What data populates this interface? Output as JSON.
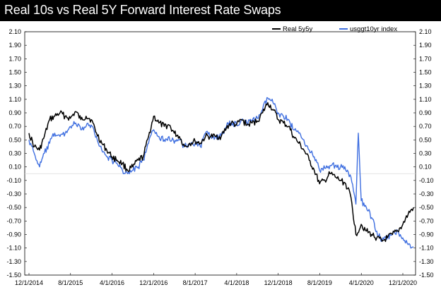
{
  "title": "Real 10s vs Real 5Y Forward Interest Rate Swaps",
  "chart_data": {
    "type": "line",
    "title": "Real 10s vs Real 5Y Forward Interest Rate Swaps",
    "xlabel": "",
    "ylabel": "",
    "ylim": [
      -1.5,
      2.1
    ],
    "y_ticks": [
      "2.10",
      "1.90",
      "1.70",
      "1.50",
      "1.30",
      "1.10",
      "0.90",
      "0.70",
      "0.50",
      "0.30",
      "0.10",
      "-0.10",
      "-0.30",
      "-0.50",
      "-0.70",
      "-0.90",
      "-1.10",
      "-1.30",
      "-1.50"
    ],
    "x_tick_labels": [
      "12/1/2014",
      "8/1/2015",
      "4/1/2016",
      "12/1/2016",
      "8/1/2017",
      "4/1/2018",
      "12/1/2018",
      "8/1/2019",
      "4/1/2020",
      "12/1/2020"
    ],
    "x_range": [
      "2014-12-01",
      "2020-12-01"
    ],
    "legend_position": "top-right",
    "dual_axis": true,
    "zero_line": true,
    "series": [
      {
        "name": "Real 5y5y",
        "color": "#000000",
        "points": [
          [
            "2014-12-01",
            0.6
          ],
          [
            "2015-01-01",
            0.4
          ],
          [
            "2015-02-01",
            0.35
          ],
          [
            "2015-03-01",
            0.55
          ],
          [
            "2015-04-01",
            0.8
          ],
          [
            "2015-05-01",
            0.85
          ],
          [
            "2015-06-01",
            0.9
          ],
          [
            "2015-07-01",
            0.85
          ],
          [
            "2015-08-01",
            0.82
          ],
          [
            "2015-09-01",
            0.92
          ],
          [
            "2015-10-01",
            0.8
          ],
          [
            "2015-11-01",
            0.85
          ],
          [
            "2015-12-01",
            0.8
          ],
          [
            "2016-01-01",
            0.6
          ],
          [
            "2016-02-01",
            0.45
          ],
          [
            "2016-03-01",
            0.35
          ],
          [
            "2016-04-01",
            0.25
          ],
          [
            "2016-05-01",
            0.2
          ],
          [
            "2016-06-01",
            0.15
          ],
          [
            "2016-07-01",
            0.05
          ],
          [
            "2016-08-01",
            0.1
          ],
          [
            "2016-09-01",
            0.2
          ],
          [
            "2016-10-01",
            0.25
          ],
          [
            "2016-11-01",
            0.55
          ],
          [
            "2016-12-01",
            0.85
          ],
          [
            "2017-01-01",
            0.75
          ],
          [
            "2017-02-01",
            0.7
          ],
          [
            "2017-03-01",
            0.72
          ],
          [
            "2017-04-01",
            0.6
          ],
          [
            "2017-05-01",
            0.55
          ],
          [
            "2017-06-01",
            0.4
          ],
          [
            "2017-07-01",
            0.45
          ],
          [
            "2017-08-01",
            0.48
          ],
          [
            "2017-09-01",
            0.45
          ],
          [
            "2017-10-01",
            0.55
          ],
          [
            "2017-11-01",
            0.55
          ],
          [
            "2017-12-01",
            0.55
          ],
          [
            "2018-01-01",
            0.55
          ],
          [
            "2018-02-01",
            0.68
          ],
          [
            "2018-03-01",
            0.75
          ],
          [
            "2018-04-01",
            0.72
          ],
          [
            "2018-05-01",
            0.8
          ],
          [
            "2018-06-01",
            0.72
          ],
          [
            "2018-07-01",
            0.75
          ],
          [
            "2018-08-01",
            0.78
          ],
          [
            "2018-09-01",
            0.9
          ],
          [
            "2018-10-01",
            1.05
          ],
          [
            "2018-11-01",
            0.95
          ],
          [
            "2018-12-01",
            0.8
          ],
          [
            "2019-01-01",
            0.75
          ],
          [
            "2019-02-01",
            0.7
          ],
          [
            "2019-03-01",
            0.55
          ],
          [
            "2019-04-01",
            0.45
          ],
          [
            "2019-05-01",
            0.35
          ],
          [
            "2019-06-01",
            0.2
          ],
          [
            "2019-07-01",
            0.05
          ],
          [
            "2019-08-01",
            -0.15
          ],
          [
            "2019-09-01",
            -0.1
          ],
          [
            "2019-10-01",
            0.0
          ],
          [
            "2019-11-01",
            -0.05
          ],
          [
            "2019-12-01",
            -0.1
          ],
          [
            "2020-01-01",
            -0.15
          ],
          [
            "2020-02-01",
            -0.35
          ],
          [
            "2020-03-01",
            -0.9
          ],
          [
            "2020-04-01",
            -0.75
          ],
          [
            "2020-05-01",
            -0.85
          ],
          [
            "2020-06-01",
            -0.9
          ],
          [
            "2020-07-01",
            -0.95
          ],
          [
            "2020-08-01",
            -1.0
          ],
          [
            "2020-09-01",
            -0.95
          ],
          [
            "2020-10-01",
            -0.9
          ],
          [
            "2020-11-01",
            -0.85
          ],
          [
            "2020-12-01",
            -0.75
          ],
          [
            "2021-01-01",
            -0.6
          ],
          [
            "2021-02-01",
            -0.5
          ]
        ]
      },
      {
        "name": "usggt10yr index",
        "color": "#3f6fe0",
        "points": [
          [
            "2014-12-01",
            0.5
          ],
          [
            "2015-01-01",
            0.3
          ],
          [
            "2015-02-01",
            0.1
          ],
          [
            "2015-03-01",
            0.3
          ],
          [
            "2015-04-01",
            0.45
          ],
          [
            "2015-05-01",
            0.6
          ],
          [
            "2015-06-01",
            0.55
          ],
          [
            "2015-07-01",
            0.6
          ],
          [
            "2015-08-01",
            0.7
          ],
          [
            "2015-09-01",
            0.75
          ],
          [
            "2015-10-01",
            0.65
          ],
          [
            "2015-11-01",
            0.7
          ],
          [
            "2015-12-01",
            0.72
          ],
          [
            "2016-01-01",
            0.55
          ],
          [
            "2016-02-01",
            0.35
          ],
          [
            "2016-03-01",
            0.25
          ],
          [
            "2016-04-01",
            0.2
          ],
          [
            "2016-05-01",
            0.15
          ],
          [
            "2016-06-01",
            0.05
          ],
          [
            "2016-07-01",
            0.0
          ],
          [
            "2016-08-01",
            0.05
          ],
          [
            "2016-09-01",
            0.1
          ],
          [
            "2016-10-01",
            0.2
          ],
          [
            "2016-11-01",
            0.45
          ],
          [
            "2016-12-01",
            0.65
          ],
          [
            "2017-01-01",
            0.55
          ],
          [
            "2017-02-01",
            0.5
          ],
          [
            "2017-03-01",
            0.55
          ],
          [
            "2017-04-01",
            0.45
          ],
          [
            "2017-05-01",
            0.5
          ],
          [
            "2017-06-01",
            0.4
          ],
          [
            "2017-07-01",
            0.45
          ],
          [
            "2017-08-01",
            0.45
          ],
          [
            "2017-09-01",
            0.4
          ],
          [
            "2017-10-01",
            0.6
          ],
          [
            "2017-11-01",
            0.55
          ],
          [
            "2017-12-01",
            0.55
          ],
          [
            "2018-01-01",
            0.55
          ],
          [
            "2018-02-01",
            0.7
          ],
          [
            "2018-03-01",
            0.75
          ],
          [
            "2018-04-01",
            0.72
          ],
          [
            "2018-05-01",
            0.8
          ],
          [
            "2018-06-01",
            0.75
          ],
          [
            "2018-07-01",
            0.78
          ],
          [
            "2018-08-01",
            0.82
          ],
          [
            "2018-09-01",
            0.95
          ],
          [
            "2018-10-01",
            1.12
          ],
          [
            "2018-11-01",
            1.05
          ],
          [
            "2018-12-01",
            0.9
          ],
          [
            "2019-01-01",
            0.85
          ],
          [
            "2019-02-01",
            0.8
          ],
          [
            "2019-03-01",
            0.65
          ],
          [
            "2019-04-01",
            0.6
          ],
          [
            "2019-05-01",
            0.5
          ],
          [
            "2019-06-01",
            0.35
          ],
          [
            "2019-07-01",
            0.25
          ],
          [
            "2019-08-01",
            0.05
          ],
          [
            "2019-09-01",
            0.08
          ],
          [
            "2019-10-01",
            0.12
          ],
          [
            "2019-11-01",
            0.12
          ],
          [
            "2019-12-01",
            0.1
          ],
          [
            "2020-01-01",
            0.05
          ],
          [
            "2020-02-01",
            -0.05
          ],
          [
            "2020-03-01",
            -0.45
          ],
          [
            "2020-03-15",
            0.6
          ],
          [
            "2020-04-01",
            -0.4
          ],
          [
            "2020-05-01",
            -0.5
          ],
          [
            "2020-06-01",
            -0.65
          ],
          [
            "2020-07-01",
            -0.85
          ],
          [
            "2020-08-01",
            -1.0
          ],
          [
            "2020-09-01",
            -0.95
          ],
          [
            "2020-10-01",
            -0.9
          ],
          [
            "2020-11-01",
            -0.85
          ],
          [
            "2020-12-01",
            -0.95
          ],
          [
            "2021-01-01",
            -1.05
          ],
          [
            "2021-02-01",
            -1.08
          ]
        ]
      }
    ]
  }
}
